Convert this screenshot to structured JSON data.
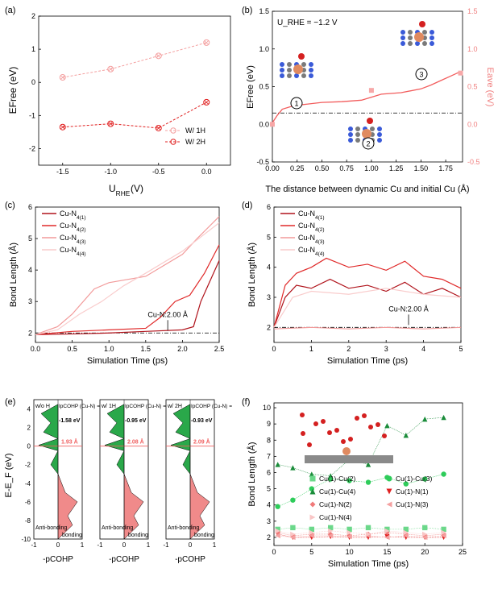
{
  "chart_data": [
    {
      "panel": "(a)",
      "type": "line",
      "xlabel": "U_RHE (V)",
      "ylabel": "E_Free (eV)",
      "xlim": [
        -1.75,
        0.25
      ],
      "ylim": [
        -2.5,
        2.0
      ],
      "xticks": [
        "-1.5",
        "-1.0",
        "-0.5",
        "0.0"
      ],
      "yticks": [
        "-2",
        "-1",
        "0",
        "1",
        "2"
      ],
      "x": [
        -1.5,
        -1.0,
        -0.5,
        0.0
      ],
      "series": [
        {
          "name": "W/ 1H",
          "values": [
            0.15,
            0.4,
            0.8,
            1.2
          ],
          "color": "#f4a0a0"
        },
        {
          "name": "W/ 2H",
          "values": [
            -1.35,
            -1.25,
            -1.38,
            -0.6
          ],
          "color": "#e02020"
        }
      ]
    },
    {
      "panel": "(b)",
      "type": "line",
      "annotation": "U_RHE = −1.2 V",
      "xlabel": "The distance between dynamic Cu and initial Cu (Å)",
      "ylabel": "E_Free (eV)",
      "ylabel_right": "E_ave (eV)",
      "xticks": [
        "0.00",
        "0.25",
        "0.50",
        "0.75",
        "1.00",
        "1.25",
        "1.50",
        "1.75"
      ],
      "yticks": [
        "-0.5",
        "0.0",
        "0.5",
        "1.0",
        "1.5"
      ],
      "xlim": [
        0,
        1.92
      ],
      "ylim": [
        -0.5,
        1.5
      ],
      "points": {
        "x": [
          0.0,
          1.0,
          1.9
        ],
        "y": [
          0.0,
          0.45,
          0.68
        ]
      },
      "curve": {
        "x": [
          0.0,
          0.05,
          0.1,
          0.2,
          0.3,
          0.5,
          0.7,
          0.9,
          1.0,
          1.1,
          1.3,
          1.5,
          1.6,
          1.7,
          1.8,
          1.9
        ],
        "y": [
          0.02,
          0.12,
          0.2,
          0.24,
          0.26,
          0.29,
          0.3,
          0.32,
          0.36,
          0.4,
          0.42,
          0.47,
          0.52,
          0.58,
          0.64,
          0.7
        ]
      },
      "reference_line": 0.15,
      "markers": [
        "1",
        "2",
        "3"
      ]
    },
    {
      "panel": "(c)",
      "type": "line",
      "xlabel": "Simulation Time (ps)",
      "ylabel": "Bond Length (Å)",
      "xticks": [
        "0.0",
        "0.5",
        "1.0",
        "1.5",
        "2.0",
        "2.5"
      ],
      "yticks": [
        "2",
        "3",
        "4",
        "5",
        "6"
      ],
      "xlim": [
        0,
        2.5
      ],
      "ylim": [
        1.7,
        6.0
      ],
      "annotation": "Cu-N:2.00 Å",
      "series": [
        {
          "name": "Cu-N4(1)",
          "sub": "4(1)",
          "color": "#b0141c",
          "x": [
            0,
            0.5,
            1.0,
            1.5,
            2.0,
            2.15,
            2.25,
            2.5
          ],
          "values": [
            1.95,
            1.97,
            2.0,
            2.05,
            2.1,
            2.2,
            3.0,
            4.3
          ]
        },
        {
          "name": "Cu-N4(2)",
          "sub": "4(2)",
          "color": "#e02a2a",
          "x": [
            0,
            0.5,
            1.0,
            1.5,
            1.7,
            1.9,
            2.1,
            2.3,
            2.5
          ],
          "values": [
            1.95,
            2.05,
            2.1,
            2.15,
            2.5,
            3.0,
            3.2,
            3.9,
            4.8
          ]
        },
        {
          "name": "Cu-N4(3)",
          "sub": "4(3)",
          "color": "#f29a9a",
          "x": [
            0,
            0.3,
            0.5,
            0.8,
            1.0,
            1.5,
            2.0,
            2.2,
            2.5
          ],
          "values": [
            1.95,
            2.2,
            2.6,
            3.4,
            3.6,
            3.8,
            4.5,
            5.0,
            5.7
          ]
        },
        {
          "name": "Cu-N4(4)",
          "sub": "4(4)",
          "color": "#f9cccc",
          "x": [
            0,
            0.3,
            0.6,
            0.9,
            1.2,
            1.5,
            2.0,
            2.5
          ],
          "values": [
            1.95,
            2.1,
            2.6,
            3.0,
            3.5,
            3.9,
            4.6,
            5.5
          ]
        }
      ]
    },
    {
      "panel": "(d)",
      "type": "line",
      "xlabel": "Simulation Time (ps)",
      "ylabel": "Bond Length (Å)",
      "xticks": [
        "0",
        "1",
        "2",
        "3",
        "4",
        "5"
      ],
      "yticks": [
        "2",
        "3",
        "4",
        "5",
        "6"
      ],
      "xlim": [
        0,
        5
      ],
      "ylim": [
        1.5,
        6.0
      ],
      "annotation": "Cu-N:2.00 Å",
      "series": [
        {
          "name": "Cu-N4(1)",
          "sub": "4(1)",
          "color": "#b0141c",
          "x": [
            0,
            0.3,
            0.6,
            1.0,
            1.5,
            2.0,
            2.5,
            3.0,
            3.5,
            4.0,
            4.5,
            5.0
          ],
          "values": [
            2.0,
            3.0,
            3.4,
            3.3,
            3.6,
            3.3,
            3.4,
            3.2,
            3.5,
            3.1,
            3.3,
            3.0
          ]
        },
        {
          "name": "Cu-N4(2)",
          "sub": "4(2)",
          "color": "#e02a2a",
          "x": [
            0,
            0.3,
            0.6,
            1.0,
            1.4,
            2.0,
            2.5,
            3.0,
            3.5,
            4.0,
            4.5,
            5.0
          ],
          "values": [
            2.0,
            3.4,
            3.8,
            4.0,
            4.3,
            4.0,
            4.1,
            3.9,
            4.2,
            3.7,
            3.6,
            3.3
          ]
        },
        {
          "name": "Cu-N4(3)",
          "sub": "4(3)",
          "color": "#f29a9a",
          "x": [
            0,
            1,
            2,
            3,
            4,
            5
          ],
          "values": [
            1.95,
            2.0,
            1.95,
            2.0,
            1.95,
            2.0
          ]
        },
        {
          "name": "Cu-N4(4)",
          "sub": "4(4)",
          "color": "#f9cccc",
          "x": [
            0,
            0.5,
            1.0,
            2.0,
            3.0,
            4.0,
            5.0
          ],
          "values": [
            2.0,
            3.0,
            3.2,
            3.1,
            3.3,
            3.1,
            3.0
          ]
        }
      ]
    },
    {
      "panel": "(e)",
      "type": "area",
      "ylabel": "E-E_F (eV)",
      "xlabel": "-pCOHP",
      "xticks": [
        "-1",
        "0",
        "1"
      ],
      "yticks": [
        "-10",
        "-8",
        "-6",
        "-4",
        "-2",
        "0",
        "2",
        "4"
      ],
      "subpanels": [
        {
          "title": "w/o H",
          "icohp_label": "IpCOHP (Cu-N) =",
          "icohp": "-1.58 eV",
          "bond": "1.93 Å"
        },
        {
          "title": "w/ 1H",
          "icohp_label": "IpCOHP (Cu-N) =",
          "icohp": "-0.95 eV",
          "bond": "2.08 Å"
        },
        {
          "title": "w/ 2H",
          "icohp_label": "IpCOHP (Cu-N) =",
          "icohp": "-0.93 eV",
          "bond": "2.09 Å"
        }
      ],
      "regions": {
        "antibonding": "Anti-bonding",
        "bonding": "bonding"
      }
    },
    {
      "panel": "(f)",
      "type": "scatter",
      "xlabel": "Simulation Time (ps)",
      "ylabel": "Bond Length (Å)",
      "xticks": [
        "0",
        "5",
        "10",
        "15",
        "20",
        "25"
      ],
      "yticks": [
        "2",
        "3",
        "4",
        "5",
        "6",
        "7",
        "8",
        "9",
        "10"
      ],
      "xlim": [
        0,
        25
      ],
      "ylim": [
        1.5,
        10.3
      ],
      "legend": [
        {
          "name": "Cu(1)-Cu(2)",
          "color": "#6bd88a",
          "shape": "square"
        },
        {
          "name": "Cu(1)-Cu(3)",
          "color": "#2ecc5a",
          "shape": "circle"
        },
        {
          "name": "Cu(1)-Cu(4)",
          "color": "#1a8c3a",
          "shape": "triangle-up"
        },
        {
          "name": "Cu(1)-N(1)",
          "color": "#e02020",
          "shape": "triangle-down"
        },
        {
          "name": "Cu(1)-N(2)",
          "color": "#f07a7a",
          "shape": "diamond"
        },
        {
          "name": "Cu(1)-N(3)",
          "color": "#f4a0a0",
          "shape": "triangle-left"
        },
        {
          "name": "Cu(1)-N(4)",
          "color": "#f9c6c6",
          "shape": "triangle-right"
        }
      ],
      "series": [
        {
          "name": "Cu(1)-Cu(4)",
          "x": [
            0.5,
            2.5,
            5.0,
            7.5,
            10,
            12.5,
            15,
            17.5,
            20,
            22.5
          ],
          "values": [
            6.5,
            6.3,
            5.9,
            5.8,
            6.8,
            6.5,
            8.9,
            8.3,
            9.3,
            9.4
          ]
        },
        {
          "name": "Cu(1)-Cu(3)",
          "x": [
            0.5,
            2.5,
            5.0,
            7.5,
            10,
            12.5,
            15,
            17.5,
            20,
            22.5
          ],
          "values": [
            3.9,
            4.3,
            5.0,
            5.6,
            5.5,
            5.4,
            5.7,
            5.3,
            5.6,
            5.9
          ]
        },
        {
          "name": "Cu(1)-Cu(2)",
          "x": [
            0.5,
            2.5,
            5.0,
            7.5,
            10,
            12.5,
            15,
            17.5,
            20,
            22.5
          ],
          "values": [
            2.5,
            2.6,
            2.5,
            2.6,
            2.5,
            2.6,
            2.5,
            2.5,
            2.6,
            2.5
          ]
        },
        {
          "name": "Cu(1)-N(1)",
          "x": [
            0.5,
            2.5,
            5.0,
            7.5,
            10,
            12.5,
            15,
            17.5,
            20,
            22.5
          ],
          "values": [
            2.2,
            2.0,
            2.0,
            2.05,
            2.0,
            2.0,
            2.05,
            2.0,
            2.0,
            2.0
          ]
        },
        {
          "name": "Cu(1)-N(2)",
          "x": [
            0.5,
            2.5,
            5.0,
            7.5,
            10,
            12.5,
            15,
            17.5,
            20,
            22.5
          ],
          "values": [
            2.3,
            2.1,
            2.2,
            2.2,
            2.1,
            2.2,
            2.3,
            2.2,
            2.1,
            2.2
          ]
        },
        {
          "name": "Cu(1)-N(3)",
          "x": [
            0.5,
            2.5,
            5.0,
            7.5,
            10,
            12.5,
            15,
            17.5,
            20,
            22.5
          ],
          "values": [
            2.1,
            2.0,
            2.1,
            2.1,
            2.05,
            2.1,
            2.0,
            2.1,
            2.0,
            2.1
          ]
        },
        {
          "name": "Cu(1)-N(4)",
          "x": [
            0.5,
            2.5,
            5.0,
            7.5,
            10,
            12.5,
            15,
            17.5,
            20,
            22.5
          ],
          "values": [
            2.4,
            2.2,
            2.3,
            2.4,
            2.3,
            2.2,
            2.4,
            2.3,
            2.2,
            2.3
          ]
        }
      ]
    }
  ]
}
